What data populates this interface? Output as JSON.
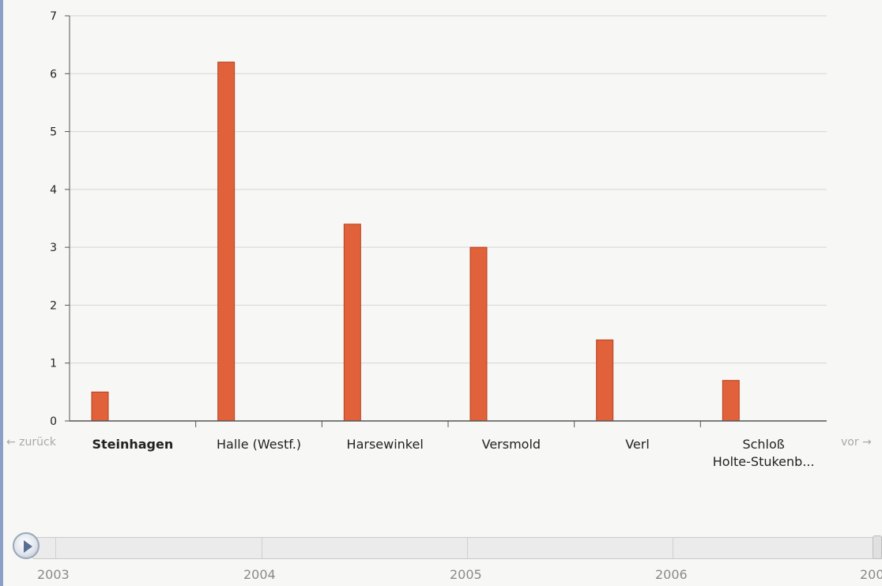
{
  "chart_data": {
    "type": "bar",
    "categories": [
      "Steinhagen",
      "Halle (Westf.)",
      "Harsewinkel",
      "Versmold",
      "Verl",
      "Schloß Holte-Stukenb..."
    ],
    "category_lines": [
      [
        "Steinhagen"
      ],
      [
        "Halle (Westf.)"
      ],
      [
        "Harsewinkel"
      ],
      [
        "Versmold"
      ],
      [
        "Verl"
      ],
      [
        "Schloß",
        "Holte-Stukenb..."
      ]
    ],
    "values": [
      0.5,
      6.2,
      3.4,
      3.0,
      1.4,
      0.7
    ],
    "ylim": [
      0,
      7
    ],
    "yticks": [
      "0",
      "1",
      "2",
      "3",
      "4",
      "5",
      "6",
      "7"
    ],
    "highlighted_category": "Steinhagen",
    "grid": true,
    "bar_color": "#e0613a"
  },
  "nav": {
    "prev_label": "← zurück",
    "next_label": "vor →"
  },
  "timeline": {
    "years": [
      "2003",
      "2004",
      "2005",
      "2006",
      "200"
    ],
    "current": "2003",
    "play_icon": "play-icon"
  },
  "colors": {
    "grid": "#d6d6d6",
    "axis": "#555555",
    "bar": "#e0613a",
    "bar_edge": "#b5411f"
  }
}
